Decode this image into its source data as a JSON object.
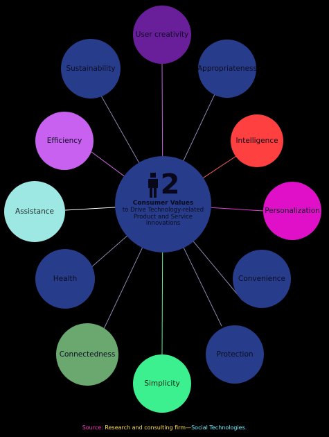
{
  "colors": {
    "background": "#000000",
    "center": "#283c8c",
    "navy": "#283c8c",
    "purple": "#6a1f9a",
    "red": "#ff4040",
    "magenta": "#e010c8",
    "lavender": "#c860f0",
    "aqua": "#9ee8e4",
    "sage": "#6aa870",
    "mint": "#3cf090"
  },
  "center": {
    "logo_icon": "person-icon",
    "logo_digit": "2",
    "title": "Consumer Values",
    "subtitle": "to Drive Technology-related Product and Service Innovations"
  },
  "nodes": [
    {
      "id": "user-creativity",
      "label": "User creativity",
      "color": "#6a1f9a",
      "link_color": "#c060e0"
    },
    {
      "id": "appropriateness",
      "label": "Appropriateness",
      "color": "#283c8c",
      "link_color": "#8a8ab0"
    },
    {
      "id": "intelligence",
      "label": "Intelligence",
      "color": "#ff4040",
      "link_color": "#ff6060"
    },
    {
      "id": "personalization",
      "label": "Personalization",
      "color": "#e010c8",
      "link_color": "#e040d0"
    },
    {
      "id": "convenience",
      "label": "Convenience",
      "color": "#283c8c",
      "link_color": "#8a8ab0"
    },
    {
      "id": "protection",
      "label": "Protection",
      "color": "#283c8c",
      "link_color": "#8a8ab0"
    },
    {
      "id": "simplicity",
      "label": "Simplicity",
      "color": "#3cf090",
      "link_color": "#60f090"
    },
    {
      "id": "connectedness",
      "label": "Connectedness",
      "color": "#6aa870",
      "link_color": "#8a8ab0"
    },
    {
      "id": "health",
      "label": "Health",
      "color": "#283c8c",
      "link_color": "#8a8ab0"
    },
    {
      "id": "assistance",
      "label": "Assistance",
      "color": "#9ee8e4",
      "link_color": "#ffffff"
    },
    {
      "id": "efficiency",
      "label": "Efficiency",
      "color": "#c860f0",
      "link_color": "#d070e0"
    },
    {
      "id": "sustainability",
      "label": "Sustainability",
      "color": "#283c8c",
      "link_color": "#8a8ab0"
    }
  ],
  "source": {
    "part1": "Source: ",
    "part2": "Research and consulting firm—",
    "part3": "Social Technologies",
    "part4": "."
  }
}
